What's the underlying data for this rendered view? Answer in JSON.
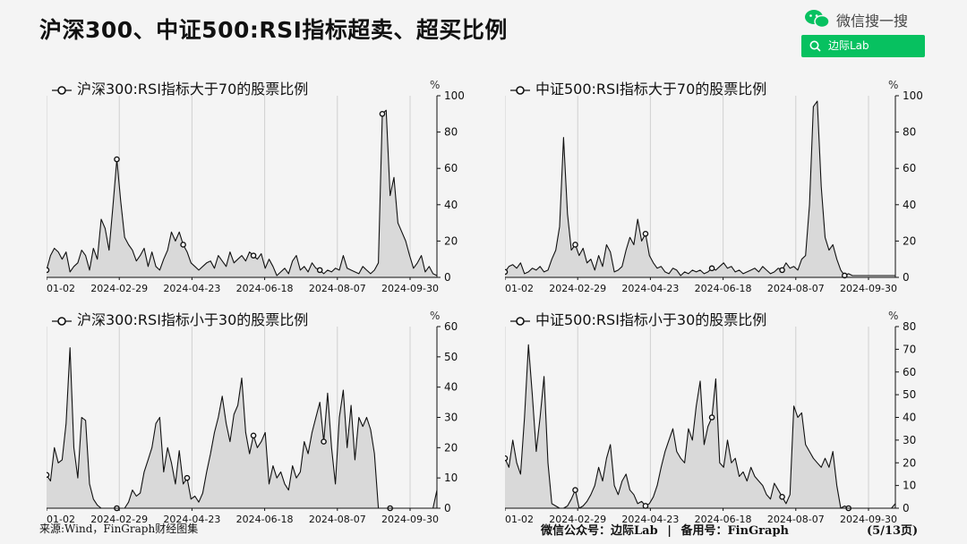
{
  "header": {
    "title": "沪深300、中证500:RSI指标超卖、超买比例",
    "brand_text": "微信搜一搜",
    "brand_icon": "wechat-icon",
    "search_label": "边际Lab",
    "accent": "#07c160"
  },
  "footer": {
    "source": "来源:Wind，FinGraph财经图集",
    "wechat": "微信公众号：边际Lab",
    "divider": "|",
    "backup": "备用号：FinGraph",
    "page": "(5/13页)"
  },
  "chart_data": [
    {
      "type": "area",
      "title": "沪深300:RSI指标大于70的股票比例",
      "unit": "%",
      "ylim": [
        0,
        100
      ],
      "yticks": [
        0,
        20,
        40,
        60,
        80,
        100
      ],
      "xticks": [
        "2024-01-02",
        "2024-02-29",
        "2024-04-23",
        "2024-06-18",
        "2024-08-07",
        "2024-09-30"
      ],
      "x_range": [
        0,
        100
      ],
      "series": [
        {
          "x": [
            0,
            1,
            2,
            3,
            4,
            5,
            6,
            7,
            8,
            9,
            10,
            11,
            12,
            13,
            14,
            15,
            16,
            17,
            18,
            19,
            20,
            21,
            22,
            23,
            24,
            25,
            26,
            27,
            28,
            29,
            30,
            31,
            32,
            33,
            34,
            35,
            36,
            37,
            38,
            39,
            40,
            41,
            42,
            43,
            44,
            45,
            46,
            47,
            48,
            49,
            50,
            51,
            52,
            53,
            54,
            55,
            56,
            57,
            58,
            59,
            60,
            61,
            62,
            63,
            64,
            65,
            66,
            67,
            68,
            69,
            70,
            71,
            72,
            73,
            74,
            75,
            76,
            77,
            78,
            79,
            80,
            81,
            82,
            83,
            84,
            85,
            86,
            87,
            88,
            89,
            90,
            91,
            92,
            93,
            94,
            95,
            96,
            97,
            98,
            99,
            100
          ],
          "y": [
            4,
            12,
            16,
            14,
            10,
            14,
            3,
            6,
            8,
            15,
            12,
            4,
            16,
            10,
            32,
            27,
            15,
            39,
            65,
            42,
            22,
            18,
            15,
            9,
            12,
            16,
            6,
            14,
            6,
            4,
            10,
            15,
            25,
            20,
            25,
            18,
            14,
            8,
            6,
            4,
            6,
            8,
            9,
            5,
            12,
            9,
            6,
            14,
            8,
            10,
            12,
            9,
            14,
            12,
            10,
            13,
            5,
            10,
            6,
            1,
            3,
            5,
            2,
            9,
            12,
            4,
            6,
            3,
            8,
            5,
            4,
            2,
            4,
            3,
            5,
            4,
            12,
            5,
            4,
            3,
            2,
            6,
            4,
            2,
            4,
            8,
            90,
            92,
            45,
            55,
            30,
            25,
            20,
            12,
            5,
            8,
            12,
            3,
            6,
            2,
            1
          ]
        }
      ],
      "markers": [
        0,
        18,
        35,
        53,
        70,
        86
      ]
    },
    {
      "type": "area",
      "title": "中证500:RSI指标大于70的股票比例",
      "unit": "%",
      "ylim": [
        0,
        100
      ],
      "yticks": [
        0,
        20,
        40,
        60,
        80,
        100
      ],
      "xticks": [
        "2024-01-02",
        "2024-02-29",
        "2024-04-23",
        "2024-06-18",
        "2024-08-07",
        "2024-09-30"
      ],
      "x_range": [
        0,
        100
      ],
      "series": [
        {
          "x": [
            0,
            1,
            2,
            3,
            4,
            5,
            6,
            7,
            8,
            9,
            10,
            11,
            12,
            13,
            14,
            15,
            16,
            17,
            18,
            19,
            20,
            21,
            22,
            23,
            24,
            25,
            26,
            27,
            28,
            29,
            30,
            31,
            32,
            33,
            34,
            35,
            36,
            37,
            38,
            39,
            40,
            41,
            42,
            43,
            44,
            45,
            46,
            47,
            48,
            49,
            50,
            51,
            52,
            53,
            54,
            55,
            56,
            57,
            58,
            59,
            60,
            61,
            62,
            63,
            64,
            65,
            66,
            67,
            68,
            69,
            70,
            71,
            72,
            73,
            74,
            75,
            76,
            77,
            78,
            79,
            80,
            81,
            82,
            83,
            84,
            85,
            86,
            87,
            88,
            89,
            90,
            91,
            92,
            93,
            94,
            95,
            96,
            97,
            98,
            99,
            100
          ],
          "y": [
            3,
            6,
            7,
            5,
            8,
            2,
            3,
            5,
            4,
            6,
            3,
            4,
            10,
            15,
            28,
            77,
            35,
            15,
            18,
            12,
            16,
            8,
            10,
            4,
            12,
            6,
            18,
            14,
            3,
            4,
            6,
            15,
            22,
            18,
            32,
            20,
            24,
            12,
            8,
            5,
            6,
            3,
            2,
            5,
            4,
            1,
            3,
            2,
            4,
            3,
            4,
            2,
            3,
            5,
            4,
            6,
            8,
            5,
            6,
            3,
            4,
            2,
            3,
            4,
            5,
            3,
            6,
            4,
            2,
            3,
            5,
            4,
            8,
            5,
            6,
            4,
            10,
            12,
            40,
            94,
            97,
            50,
            22,
            15,
            18,
            10,
            4,
            1,
            2,
            1,
            1,
            1,
            1,
            1,
            1,
            1,
            1,
            1,
            1,
            1,
            1
          ]
        }
      ],
      "markers": [
        0,
        18,
        36,
        53,
        71,
        87
      ]
    },
    {
      "type": "area",
      "title": "沪深300:RSI指标小于30的股票比例",
      "unit": "%",
      "ylim": [
        0,
        60
      ],
      "yticks": [
        0,
        10,
        20,
        30,
        40,
        50,
        60
      ],
      "xticks": [
        "2024-01-02",
        "2024-02-29",
        "2024-04-23",
        "2024-06-18",
        "2024-08-07",
        "2024-09-30"
      ],
      "x_range": [
        0,
        100
      ],
      "series": [
        {
          "x": [
            0,
            1,
            2,
            3,
            4,
            5,
            6,
            7,
            8,
            9,
            10,
            11,
            12,
            13,
            14,
            15,
            16,
            17,
            18,
            19,
            20,
            21,
            22,
            23,
            24,
            25,
            26,
            27,
            28,
            29,
            30,
            31,
            32,
            33,
            34,
            35,
            36,
            37,
            38,
            39,
            40,
            41,
            42,
            43,
            44,
            45,
            46,
            47,
            48,
            49,
            50,
            51,
            52,
            53,
            54,
            55,
            56,
            57,
            58,
            59,
            60,
            61,
            62,
            63,
            64,
            65,
            66,
            67,
            68,
            69,
            70,
            71,
            72,
            73,
            74,
            75,
            76,
            77,
            78,
            79,
            80,
            81,
            82,
            83,
            84,
            85,
            86,
            87,
            88,
            89,
            90,
            91,
            92,
            93,
            94,
            95,
            96,
            97,
            98,
            99,
            100
          ],
          "y": [
            11,
            9,
            20,
            15,
            16,
            28,
            53,
            20,
            10,
            30,
            29,
            8,
            3,
            1,
            0,
            0,
            0,
            0,
            0,
            0,
            0,
            2,
            6,
            4,
            5,
            12,
            16,
            20,
            28,
            30,
            12,
            20,
            15,
            8,
            19,
            8,
            10,
            3,
            4,
            2,
            5,
            12,
            18,
            25,
            30,
            37,
            28,
            22,
            31,
            34,
            43,
            25,
            18,
            24,
            20,
            22,
            25,
            8,
            14,
            10,
            12,
            8,
            6,
            14,
            10,
            12,
            22,
            18,
            25,
            30,
            35,
            22,
            38,
            20,
            8,
            30,
            39,
            20,
            34,
            16,
            30,
            27,
            30,
            26,
            18,
            0,
            0,
            0,
            0,
            0,
            0,
            0,
            0,
            0,
            0,
            0,
            0,
            0,
            0,
            0,
            6
          ]
        }
      ],
      "markers": [
        0,
        18,
        36,
        53,
        71,
        88
      ]
    },
    {
      "type": "area",
      "title": "中证500:RSI指标小于30的股票比例",
      "unit": "%",
      "ylim": [
        0,
        80
      ],
      "yticks": [
        0,
        10,
        20,
        30,
        40,
        50,
        60,
        70,
        80
      ],
      "xticks": [
        "2024-01-02",
        "2024-02-29",
        "2024-04-23",
        "2024-06-18",
        "2024-08-07",
        "2024-09-30"
      ],
      "x_range": [
        0,
        100
      ],
      "series": [
        {
          "x": [
            0,
            1,
            2,
            3,
            4,
            5,
            6,
            7,
            8,
            9,
            10,
            11,
            12,
            13,
            14,
            15,
            16,
            17,
            18,
            19,
            20,
            21,
            22,
            23,
            24,
            25,
            26,
            27,
            28,
            29,
            30,
            31,
            32,
            33,
            34,
            35,
            36,
            37,
            38,
            39,
            40,
            41,
            42,
            43,
            44,
            45,
            46,
            47,
            48,
            49,
            50,
            51,
            52,
            53,
            54,
            55,
            56,
            57,
            58,
            59,
            60,
            61,
            62,
            63,
            64,
            65,
            66,
            67,
            68,
            69,
            70,
            71,
            72,
            73,
            74,
            75,
            76,
            77,
            78,
            79,
            80,
            81,
            82,
            83,
            84,
            85,
            86,
            87,
            88,
            89,
            90,
            91,
            92,
            93,
            94,
            95,
            96,
            97,
            98,
            99,
            100
          ],
          "y": [
            22,
            18,
            30,
            20,
            15,
            40,
            72,
            50,
            25,
            40,
            58,
            20,
            2,
            1,
            0,
            0,
            1,
            4,
            8,
            0,
            1,
            3,
            6,
            10,
            18,
            12,
            22,
            28,
            10,
            6,
            12,
            15,
            8,
            6,
            2,
            3,
            1,
            2,
            5,
            10,
            18,
            25,
            30,
            35,
            25,
            22,
            20,
            35,
            30,
            45,
            56,
            28,
            36,
            40,
            57,
            20,
            18,
            30,
            20,
            22,
            14,
            16,
            12,
            18,
            14,
            12,
            10,
            6,
            4,
            11,
            8,
            5,
            2,
            6,
            45,
            40,
            42,
            28,
            25,
            22,
            20,
            18,
            22,
            18,
            25,
            10,
            0,
            1,
            0,
            0,
            0,
            0,
            0,
            0,
            0,
            0,
            0,
            0,
            0,
            0,
            2
          ]
        }
      ],
      "markers": [
        0,
        18,
        36,
        53,
        71,
        88
      ]
    }
  ]
}
